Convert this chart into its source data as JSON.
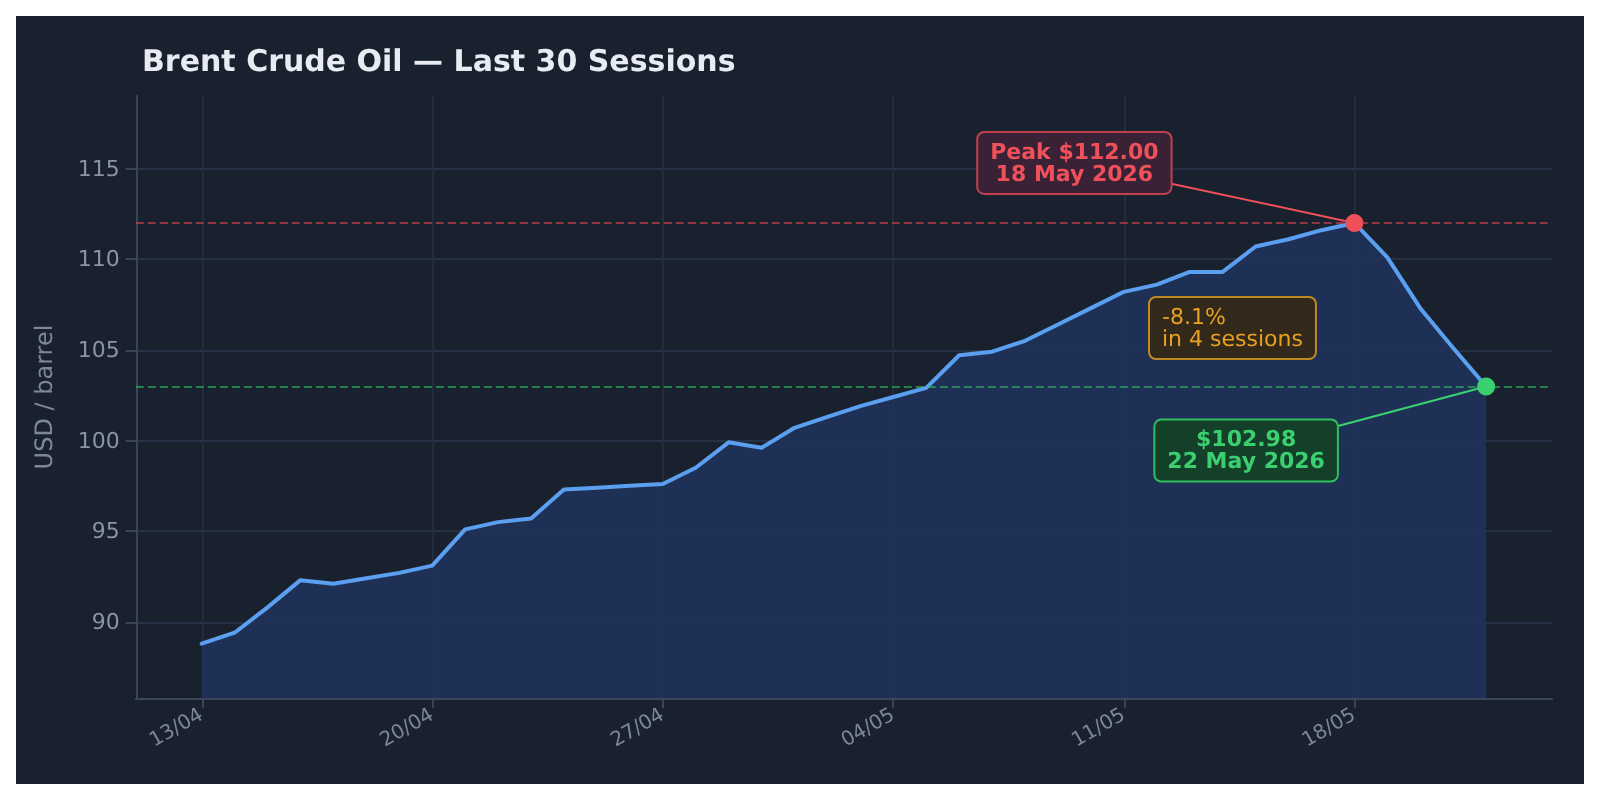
{
  "chart_data": {
    "type": "area",
    "title": "Brent Crude Oil — Last 30 Sessions",
    "ylabel": "USD / barrel",
    "x": [
      "2026-04-13",
      "2026-04-14",
      "2026-04-15",
      "2026-04-16",
      "2026-04-17",
      "2026-04-18",
      "2026-04-19",
      "2026-04-20",
      "2026-04-21",
      "2026-04-22",
      "2026-04-23",
      "2026-04-24",
      "2026-04-25",
      "2026-04-26",
      "2026-04-27",
      "2026-04-28",
      "2026-04-29",
      "2026-04-30",
      "2026-05-01",
      "2026-05-02",
      "2026-05-03",
      "2026-05-04",
      "2026-05-05",
      "2026-05-06",
      "2026-05-07",
      "2026-05-08",
      "2026-05-09",
      "2026-05-10",
      "2026-05-11",
      "2026-05-12",
      "2026-05-13",
      "2026-05-14",
      "2026-05-15",
      "2026-05-16",
      "2026-05-17",
      "2026-05-18",
      "2026-05-19",
      "2026-05-20",
      "2026-05-21",
      "2026-05-22"
    ],
    "series": [
      {
        "color": "#5b9ff0",
        "values": [
          88.8,
          89.4,
          90.8,
          92.3,
          92.1,
          92.4,
          92.7,
          93.1,
          95.1,
          95.5,
          95.7,
          97.3,
          97.4,
          97.5,
          97.6,
          98.5,
          99.9,
          99.6,
          100.7,
          101.3,
          101.9,
          102.4,
          102.9,
          104.7,
          104.9,
          105.5,
          106.4,
          107.3,
          108.2,
          108.6,
          109.3,
          109.3,
          110.7,
          111.1,
          111.6,
          112.0,
          110.1,
          107.3,
          105.1,
          102.98
        ]
      }
    ],
    "xlim": [
      "2026-04-11",
      "2026-05-24"
    ],
    "xticks": [
      {
        "value": "2026-04-13",
        "label": "13/04"
      },
      {
        "value": "2026-04-20",
        "label": "20/04"
      },
      {
        "value": "2026-04-27",
        "label": "27/04"
      },
      {
        "value": "2026-05-04",
        "label": "04/05"
      },
      {
        "value": "2026-05-11",
        "label": "11/05"
      },
      {
        "value": "2026-05-18",
        "label": "18/05"
      }
    ],
    "ylim": [
      85.8,
      119
    ],
    "yticks": [
      90,
      95,
      100,
      105,
      110,
      115
    ],
    "grid": true,
    "marker": "none",
    "line_style": "solid",
    "ref_lines": [
      {
        "axis": "y",
        "value": 112,
        "color": "#e0464e",
        "line_style": "dashed"
      },
      {
        "axis": "y",
        "value": 102.98,
        "color": "#2fbf5f",
        "line_style": "dashed"
      }
    ],
    "annotations": [
      {
        "text": "Peak $112.00\n18 May 2026",
        "x": "2026-05-18",
        "y": 112
      },
      {
        "text": "$102.98\n22 May 2026",
        "x": "2026-05-22",
        "y": 102.98
      },
      "-8.1%\nin 4 sessions"
    ]
  }
}
